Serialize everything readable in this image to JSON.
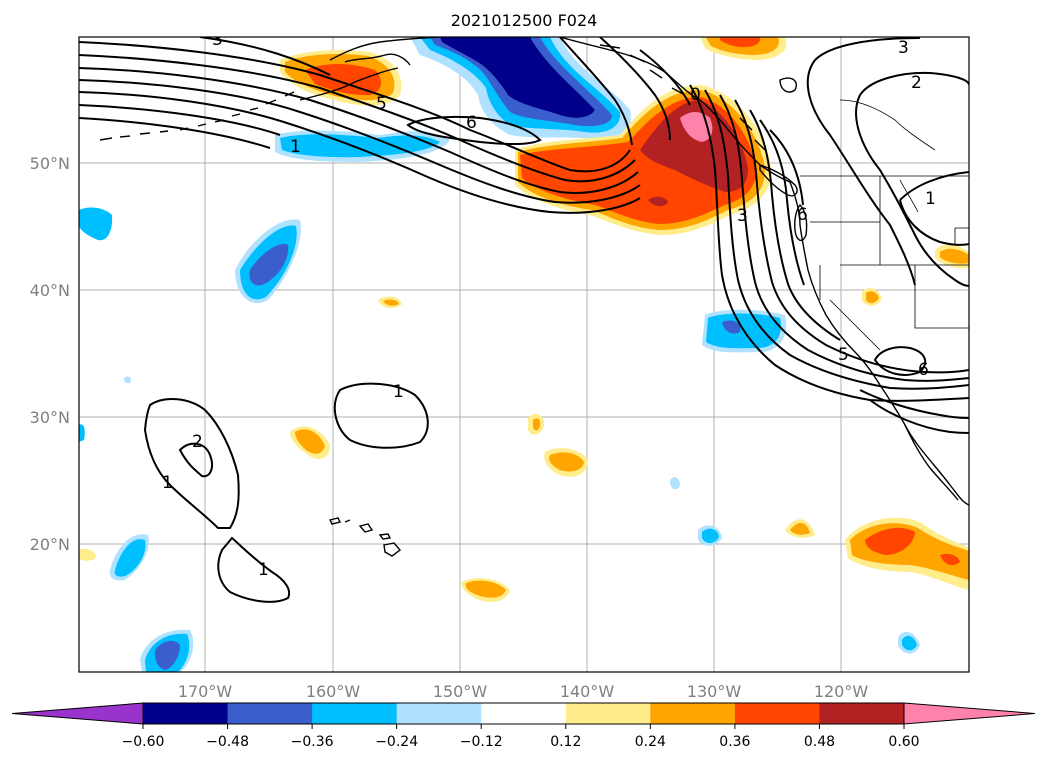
{
  "title": "2021012500 F024",
  "lon_labels": [
    "170°W",
    "160°W",
    "150°W",
    "140°W",
    "130°W",
    "120°W"
  ],
  "lat_labels": [
    "50°N",
    "40°N",
    "30°N",
    "20°N"
  ],
  "colorbar": {
    "ticks": [
      "−0.60",
      "−0.48",
      "−0.36",
      "−0.24",
      "−0.12",
      "0.12",
      "0.24",
      "0.36",
      "0.48",
      "0.60"
    ],
    "colors": [
      "#9933cc",
      "#00008b",
      "#3a5fcd",
      "#00bfff",
      "#b0e2ff",
      "#ffffff",
      "#ffec8b",
      "#ffa500",
      "#ff4500",
      "#b22222",
      "#ff82ab"
    ]
  },
  "contour_labels": {
    "c3_top": "3",
    "c5_alaska": "5",
    "c6_gulf": "6",
    "c1_aleut": "1",
    "c3_coast": "3",
    "c6_wa": "6",
    "c1_idaho": "1",
    "c3_right": "3",
    "c2_right": "2",
    "c5_ca": "5",
    "c6_sw": "6",
    "c0_bc": "0",
    "c1_mid": "1",
    "c2_west": "2",
    "c1_west": "1",
    "c1_south": "1"
  }
}
